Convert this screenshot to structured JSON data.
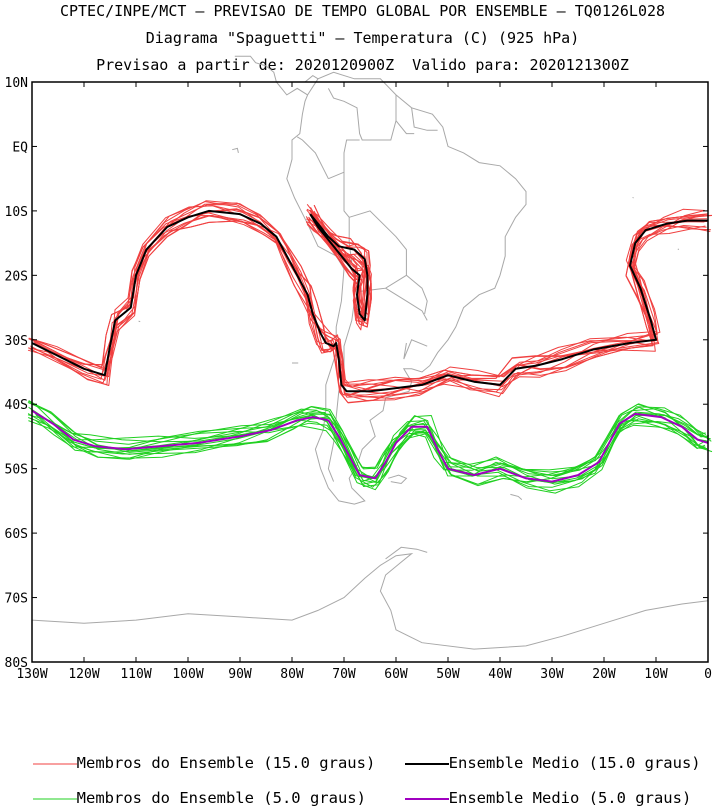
{
  "header": {
    "line1": "CPTEC/INPE/MCT — PREVISAO DE TEMPO GLOBAL POR ENSEMBLE — TQ0126L028",
    "line2": "Diagrama \"Spaguetti\" — Temperatura (C) (925 hPa)",
    "line3": "Previsao a partir de: 2020120900Z  Valido para: 2020121300Z"
  },
  "colors": {
    "members_15": "#f04040",
    "mean_15": "#000000",
    "members_5": "#20d020",
    "mean_5": "#a000c0",
    "coast": "#a8a8a8"
  },
  "legend": [
    {
      "label": "Membros do Ensemble (15.0 graus)",
      "color": "#f04040"
    },
    {
      "label": "Ensemble Medio (15.0 graus)",
      "color": "#000000"
    },
    {
      "label": "Membros do Ensemble (5.0 graus)",
      "color": "#20d020"
    },
    {
      "label": "Ensemble Medio (5.0 graus)",
      "color": "#a000c0"
    }
  ],
  "chart_data": {
    "type": "line",
    "title": "Diagrama \"Spaguetti\" — Temperatura (C) (925 hPa)",
    "xlabel": "",
    "ylabel": "",
    "xlim": [
      -130,
      0
    ],
    "ylim": [
      -80,
      10
    ],
    "x_ticks": [
      {
        "v": -130,
        "label": "130W"
      },
      {
        "v": -120,
        "label": "120W"
      },
      {
        "v": -110,
        "label": "110W"
      },
      {
        "v": -100,
        "label": "100W"
      },
      {
        "v": -90,
        "label": "90W"
      },
      {
        "v": -80,
        "label": "80W"
      },
      {
        "v": -70,
        "label": "70W"
      },
      {
        "v": -60,
        "label": "60W"
      },
      {
        "v": -50,
        "label": "50W"
      },
      {
        "v": -40,
        "label": "40W"
      },
      {
        "v": -30,
        "label": "30W"
      },
      {
        "v": -20,
        "label": "20W"
      },
      {
        "v": -10,
        "label": "10W"
      },
      {
        "v": 0,
        "label": "0"
      }
    ],
    "y_ticks": [
      {
        "v": 10,
        "label": "10N"
      },
      {
        "v": 0,
        "label": "EQ"
      },
      {
        "v": -10,
        "label": "10S"
      },
      {
        "v": -20,
        "label": "20S"
      },
      {
        "v": -30,
        "label": "30S"
      },
      {
        "v": -40,
        "label": "40S"
      },
      {
        "v": -50,
        "label": "50S"
      },
      {
        "v": -60,
        "label": "60S"
      },
      {
        "v": -70,
        "label": "70S"
      },
      {
        "v": -80,
        "label": "80S"
      }
    ],
    "grid": false,
    "members_per_contour": 14,
    "series": [
      {
        "name": "Ensemble Medio (15.0 graus)",
        "contour": 15.0,
        "role": "mean",
        "segments": [
          [
            [
              -130,
              -30.5
            ],
            [
              -125,
              -32.5
            ],
            [
              -120,
              -34.5
            ],
            [
              -116,
              -35.5
            ],
            [
              -115,
              -31
            ],
            [
              -114,
              -27
            ],
            [
              -111,
              -25
            ],
            [
              -110,
              -20
            ],
            [
              -108,
              -16
            ],
            [
              -104,
              -12.5
            ],
            [
              -100,
              -11
            ],
            [
              -96,
              -10
            ],
            [
              -90,
              -10.5
            ],
            [
              -86,
              -12
            ],
            [
              -83,
              -14
            ],
            [
              -81,
              -17
            ],
            [
              -79,
              -20
            ],
            [
              -77,
              -23
            ],
            [
              -76,
              -26
            ],
            [
              -74.5,
              -29
            ],
            [
              -73.5,
              -30.5
            ],
            [
              -72,
              -31
            ],
            [
              -71.5,
              -30.5
            ],
            [
              -71,
              -33
            ],
            [
              -70.5,
              -37
            ],
            [
              -69.5,
              -38
            ],
            [
              -65,
              -38
            ],
            [
              -60,
              -37.5
            ],
            [
              -55,
              -37
            ],
            [
              -50,
              -35.5
            ],
            [
              -45,
              -36.5
            ],
            [
              -40,
              -37
            ],
            [
              -37,
              -34.5
            ],
            [
              -33,
              -34
            ],
            [
              -28,
              -33
            ],
            [
              -22,
              -31.5
            ],
            [
              -15,
              -30.5
            ],
            [
              -10,
              -30
            ],
            [
              -11,
              -27
            ],
            [
              -13,
              -22
            ],
            [
              -15,
              -18.5
            ],
            [
              -14,
              -15
            ],
            [
              -12,
              -13
            ],
            [
              -8,
              -12
            ],
            [
              -4,
              -11.5
            ],
            [
              0,
              -11.5
            ]
          ],
          [
            [
              -76.5,
              -10.5
            ],
            [
              -75,
              -12
            ],
            [
              -73,
              -14
            ],
            [
              -71,
              -15.5
            ],
            [
              -68,
              -16
            ],
            [
              -66,
              -17.5
            ],
            [
              -65.5,
              -20
            ],
            [
              -65.5,
              -23
            ],
            [
              -66,
              -27
            ],
            [
              -67,
              -26
            ],
            [
              -67.5,
              -23
            ],
            [
              -67,
              -20
            ],
            [
              -68.5,
              -19
            ],
            [
              -70.5,
              -17
            ],
            [
              -73,
              -14.5
            ],
            [
              -75,
              -12.5
            ],
            [
              -76.5,
              -10.5
            ]
          ]
        ]
      },
      {
        "name": "Ensemble Medio (5.0 graus)",
        "contour": 5.0,
        "role": "mean",
        "segments": [
          [
            [
              -130,
              -41
            ],
            [
              -126,
              -43
            ],
            [
              -122,
              -45.5
            ],
            [
              -118,
              -46.5
            ],
            [
              -112,
              -47
            ],
            [
              -105,
              -46.5
            ],
            [
              -98,
              -46
            ],
            [
              -90,
              -45
            ],
            [
              -84,
              -44
            ],
            [
              -79,
              -42.5
            ],
            [
              -76,
              -42
            ],
            [
              -73,
              -42.5
            ],
            [
              -71,
              -45
            ],
            [
              -69,
              -48
            ],
            [
              -67,
              -51
            ],
            [
              -64,
              -51.5
            ],
            [
              -62,
              -49
            ],
            [
              -60,
              -46
            ],
            [
              -57,
              -43.5
            ],
            [
              -54,
              -43.5
            ],
            [
              -52,
              -47
            ],
            [
              -50,
              -50
            ],
            [
              -45,
              -51
            ],
            [
              -40,
              -50
            ],
            [
              -35,
              -51.5
            ],
            [
              -30,
              -52
            ],
            [
              -25,
              -51
            ],
            [
              -21,
              -49
            ],
            [
              -19,
              -46
            ],
            [
              -17,
              -43
            ],
            [
              -14,
              -41.5
            ],
            [
              -9,
              -42
            ],
            [
              -5,
              -43.5
            ],
            [
              -2,
              -45.5
            ],
            [
              0,
              -46
            ]
          ]
        ]
      }
    ]
  }
}
